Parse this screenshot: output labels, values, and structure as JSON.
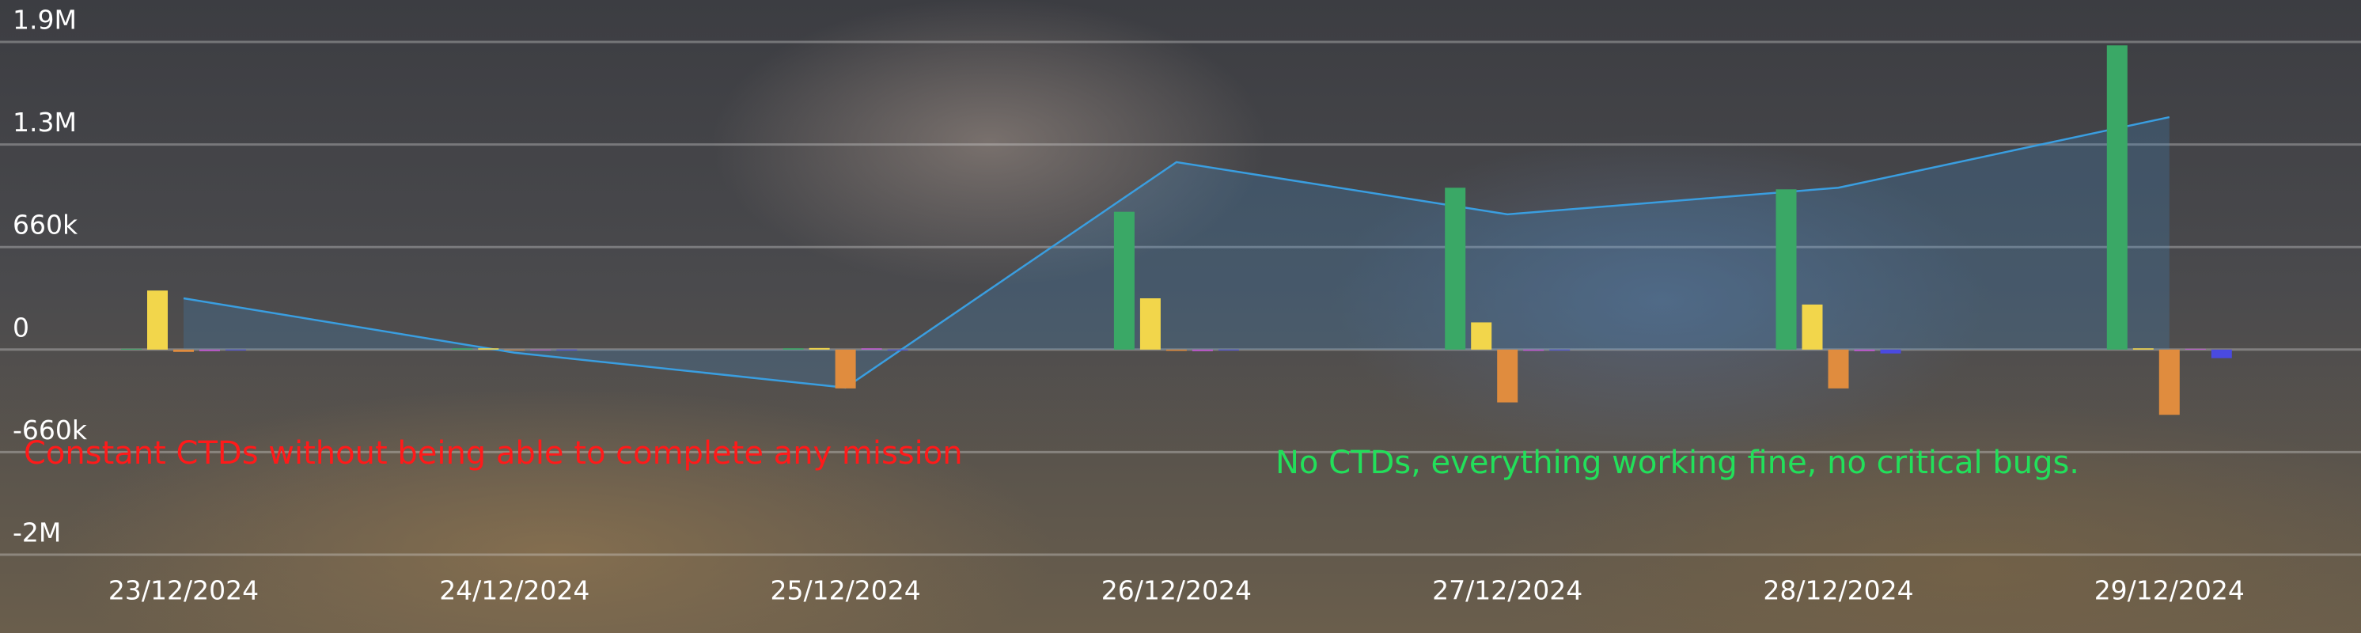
{
  "chart_data": {
    "type": "bar",
    "categories": [
      "23/12/2024",
      "24/12/2024",
      "25/12/2024",
      "26/12/2024",
      "27/12/2024",
      "28/12/2024",
      "29/12/2024"
    ],
    "series": [
      {
        "color": "#3aa866",
        "values": [
          5000,
          8000,
          8000,
          880000,
          1030000,
          1020000,
          1880000
        ]
      },
      {
        "color": "#f2d64b",
        "values": [
          380000,
          8000,
          10000,
          330000,
          175000,
          290000,
          8000
        ]
      },
      {
        "color": "#e08c3e",
        "values": [
          -15000,
          -5000,
          -250000,
          -8000,
          -340000,
          -250000,
          -420000
        ]
      },
      {
        "color": "#c05ad0",
        "values": [
          -10000,
          -5000,
          8000,
          -10000,
          -8000,
          -10000,
          5000
        ]
      },
      {
        "color": "#4a4ae0",
        "values": [
          -5000,
          -3000,
          0,
          -5000,
          0,
          -25000,
          -55000
        ]
      },
      {
        "type": "line",
        "color": "#3a9ee0",
        "values": [
          330000,
          -20000,
          -245000,
          1190000,
          864000,
          1030000,
          1460000
        ]
      }
    ],
    "ylim": [
      -2000000,
      1900000
    ],
    "yticks": [
      {
        "value": -2000000,
        "label": "-2M"
      },
      {
        "value": -660000,
        "label": "-660k"
      },
      0,
      {
        "value": 660000,
        "label": "660k"
      },
      {
        "value": 1300000,
        "label": "1.3M"
      },
      {
        "value": 1900000,
        "label": "1.9M"
      }
    ],
    "grid": true,
    "annotations": [
      {
        "text": "Constant CTDs without being able to complete any mission",
        "color": "#ff1a1a"
      },
      {
        "text": "No CTDs, everything working fine, no critical bugs.",
        "color": "#22e05a"
      }
    ]
  }
}
